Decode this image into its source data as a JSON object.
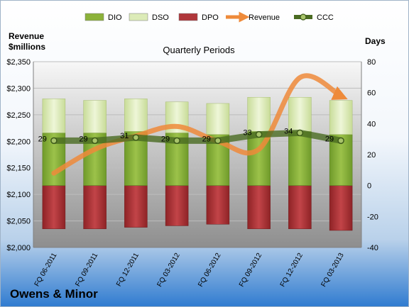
{
  "company": "Owens & Minor",
  "chart_data": {
    "type": "bar",
    "title": "Quarterly Periods",
    "left_axis_label_line1": "Revenue",
    "left_axis_label_line2": "$millions",
    "right_axis_label": "Days",
    "categories": [
      "FQ 06-2011",
      "FQ 09-2011",
      "FQ 12-2011",
      "FQ 03-2012",
      "FQ 06-2012",
      "FQ 09-2012",
      "FQ 12-2012",
      "FQ 03-2013"
    ],
    "left_ylim": [
      2000,
      2350
    ],
    "left_ticks": [
      "$2,000",
      "$2,050",
      "$2,100",
      "$2,150",
      "$2,200",
      "$2,250",
      "$2,300",
      "$2,350"
    ],
    "right_ylim": [
      -40,
      80
    ],
    "right_ticks": [
      "-40",
      "-20",
      "0",
      "20",
      "40",
      "60",
      "80"
    ],
    "legend": [
      {
        "name": "DIO",
        "kind": "bar",
        "color": "#8cb23a"
      },
      {
        "name": "DSO",
        "kind": "bar",
        "color": "#dcebb8"
      },
      {
        "name": "DPO",
        "kind": "bar",
        "color": "#b0373b"
      },
      {
        "name": "Revenue",
        "kind": "arrow",
        "color": "#ee8a3a"
      },
      {
        "name": "CCC",
        "kind": "line-marker",
        "color": "#4a6b22"
      }
    ],
    "series": [
      {
        "name": "DIO",
        "axis": "right",
        "values": [
          34,
          34,
          35,
          34,
          33,
          35,
          35,
          33
        ]
      },
      {
        "name": "DSO",
        "axis": "right",
        "values": [
          22,
          21,
          21,
          20,
          20,
          22,
          22,
          22
        ]
      },
      {
        "name": "DPO",
        "axis": "right",
        "values": [
          -28,
          -28,
          -27,
          -26,
          -25,
          -28,
          -28,
          -29
        ]
      },
      {
        "name": "CCC",
        "axis": "right",
        "values": [
          29,
          29,
          31,
          29,
          29,
          33,
          34,
          29
        ]
      },
      {
        "name": "Revenue",
        "axis": "left",
        "values": [
          2140,
          2185,
          2210,
          2228,
          2200,
          2185,
          2320,
          2285
        ]
      }
    ],
    "ccc_labels": [
      "29",
      "29",
      "31",
      "29",
      "29",
      "33",
      "34",
      "29"
    ],
    "grid": true,
    "legend_position": "top"
  }
}
